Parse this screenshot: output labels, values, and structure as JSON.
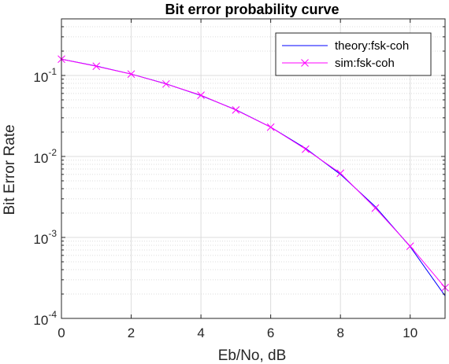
{
  "chart_data": {
    "type": "line",
    "title": "Bit error probability curve",
    "xlabel": "Eb/No, dB",
    "ylabel": "Bit Error Rate",
    "xlim": [
      0,
      11
    ],
    "ylim": [
      0.0001,
      0.5
    ],
    "yscale": "log",
    "grid": true,
    "minor_grid": true,
    "legend_position": "top-right",
    "x_ticks": [
      0,
      2,
      4,
      6,
      8,
      10
    ],
    "y_ticks": [
      {
        "value": 0.0001,
        "base": "10",
        "exp": "-4"
      },
      {
        "value": 0.001,
        "base": "10",
        "exp": "-3"
      },
      {
        "value": 0.01,
        "base": "10",
        "exp": "-2"
      },
      {
        "value": 0.1,
        "base": "10",
        "exp": "-1"
      }
    ],
    "series": [
      {
        "name": "theory:fsk-coh",
        "color": "#0000ff",
        "marker": "none",
        "x": [
          0,
          1,
          2,
          3,
          4,
          5,
          6,
          7,
          8,
          9,
          10,
          11
        ],
        "y": [
          0.1587,
          0.1309,
          0.104,
          0.0789,
          0.0565,
          0.0377,
          0.023,
          0.0126,
          0.006,
          0.0024,
          0.00077,
          0.00019
        ]
      },
      {
        "name": "sim:fsk-coh",
        "color": "#ff00ff",
        "marker": "x",
        "x": [
          0,
          1,
          2,
          3,
          4,
          5,
          6,
          7,
          8,
          9,
          10,
          11
        ],
        "y": [
          0.159,
          0.13,
          0.104,
          0.0785,
          0.057,
          0.0375,
          0.023,
          0.0123,
          0.0062,
          0.0023,
          0.00078,
          0.00024
        ]
      }
    ]
  }
}
